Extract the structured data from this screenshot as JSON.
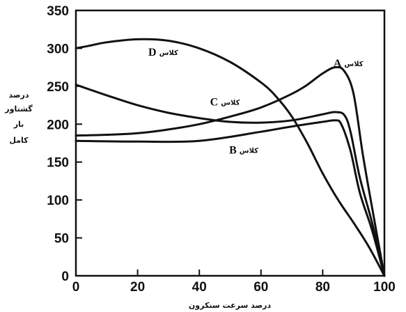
{
  "chart_data": {
    "type": "line",
    "title": "",
    "xlabel": "درصد سرعت سنکرون",
    "ylabel_lines": [
      "درصد",
      "گشتاور",
      "بار",
      "کامل"
    ],
    "xlim": [
      0,
      100
    ],
    "ylim": [
      0,
      350
    ],
    "xticks": [
      "0",
      "20",
      "40",
      "60",
      "80",
      "100"
    ],
    "yticks": [
      "0",
      "50",
      "100",
      "150",
      "200",
      "250",
      "300",
      "350"
    ],
    "grid": false,
    "series_word": "کلاس",
    "series": [
      {
        "letter": "A",
        "x": [
          0,
          10,
          20,
          30,
          40,
          50,
          60,
          70,
          75,
          80,
          84,
          87,
          90,
          93,
          96,
          100
        ],
        "y": [
          185,
          186,
          188,
          193,
          200,
          210,
          222,
          240,
          252,
          267,
          275,
          270,
          240,
          160,
          90,
          0
        ]
      },
      {
        "letter": "B",
        "x": [
          0,
          20,
          40,
          60,
          70,
          80,
          84,
          86,
          89,
          92,
          96,
          100
        ],
        "y": [
          178,
          177,
          178,
          190,
          197,
          203,
          205,
          200,
          165,
          110,
          60,
          0
        ]
      },
      {
        "letter": "C",
        "x": [
          0,
          10,
          20,
          30,
          40,
          50,
          60,
          70,
          80,
          84,
          87,
          89,
          92,
          96,
          100
        ],
        "y": [
          252,
          238,
          225,
          215,
          208,
          203,
          202,
          205,
          213,
          216,
          212,
          190,
          130,
          70,
          0
        ]
      },
      {
        "letter": "D",
        "x": [
          0,
          5,
          10,
          20,
          30,
          40,
          50,
          60,
          65,
          70,
          75,
          80,
          85,
          90,
          95,
          100
        ],
        "y": [
          300,
          304,
          308,
          312,
          310,
          300,
          282,
          255,
          236,
          210,
          175,
          135,
          100,
          70,
          38,
          0
        ]
      }
    ],
    "labels": [
      {
        "series": "D",
        "x": 27,
        "y": 295
      },
      {
        "series": "A",
        "x": 87,
        "y": 280
      },
      {
        "series": "C",
        "x": 47,
        "y": 229
      },
      {
        "series": "B",
        "x": 53,
        "y": 166
      }
    ]
  }
}
